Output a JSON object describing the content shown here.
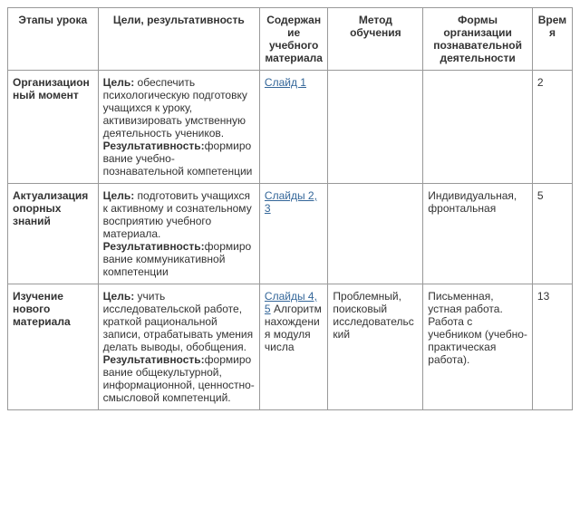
{
  "table": {
    "columns": [
      "Этапы урока",
      "Цели, результативность",
      "Содержание учебного материала",
      "Метод обучения",
      "Формы организации познавательной деятельности",
      "Время"
    ],
    "rows": [
      {
        "stage": "Организационный момент",
        "goal_label": "Цель:",
        "goal_text": " обеспечить психологическую подготовку учащихся к уроку, активизировать умственную деятельность учеников.",
        "result_label": "Результативность:",
        "result_text": "формирование учебно-познавательной компетенции",
        "content_link": "Слайд 1",
        "content_after": "",
        "method": "",
        "forms": "",
        "time": "2"
      },
      {
        "stage": "Актуализация опорных знаний",
        "goal_label": "Цель:",
        "goal_text": " подготовить учащихся к активному и сознательному восприятию учебного материала.",
        "result_label": "Результативность:",
        "result_text": "формирование коммуникативной компетенции",
        "content_link": "Слайды 2, 3",
        "content_after": "",
        "method": "",
        "forms": "Индивидуальная, фронтальная",
        "time": "5"
      },
      {
        "stage": "Изучение нового материала",
        "goal_label": "Цель:",
        "goal_text": " учить исследовательской работе, краткой рациональной записи, отрабатывать умения делать выводы, обобщения.",
        "result_label": "Результативность:",
        "result_text": "формирование общекультурной, информационной, ценностно-смысловой компетенций.",
        "content_link": "Слайды 4, 5",
        "content_after": " Алгоритм нахождения модуля числа",
        "method": "Проблемный, поисковый исследовательский",
        "forms": "Письменная, устная работа. Работа с учебником (учебно-практическая работа).",
        "time": "13"
      }
    ]
  },
  "style": {
    "link_color": "#336699",
    "border_color": "#999999"
  }
}
